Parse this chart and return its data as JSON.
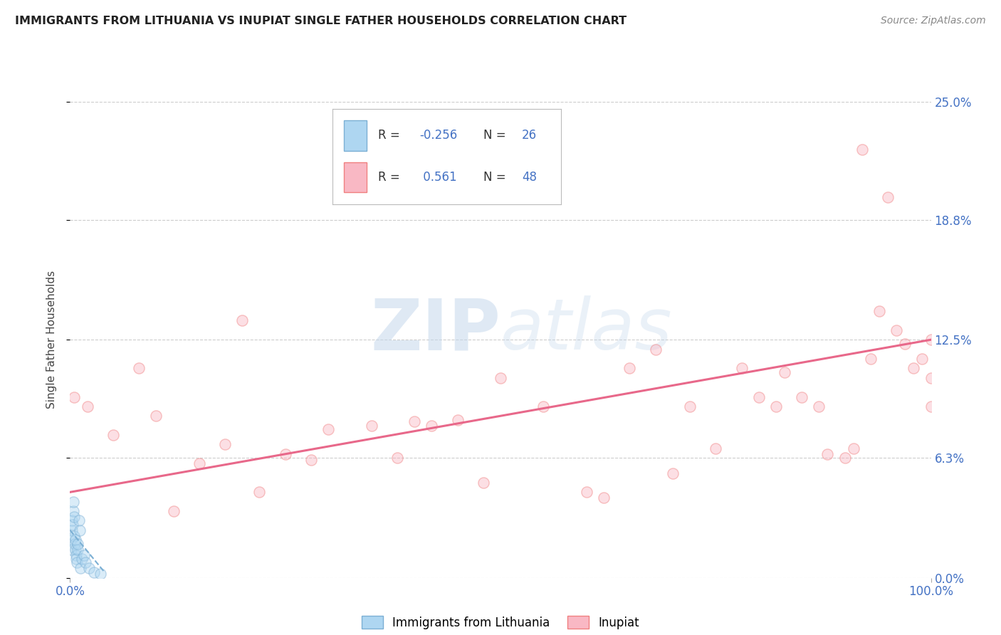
{
  "title": "IMMIGRANTS FROM LITHUANIA VS INUPIAT SINGLE FATHER HOUSEHOLDS CORRELATION CHART",
  "source": "Source: ZipAtlas.com",
  "ylabel": "Single Father Households",
  "ytick_labels": [
    "0.0%",
    "6.3%",
    "12.5%",
    "18.8%",
    "25.0%"
  ],
  "ytick_values": [
    0.0,
    6.3,
    12.5,
    18.8,
    25.0
  ],
  "blue_color": "#7BAFD4",
  "pink_color": "#F08080",
  "blue_fill": "#AED6F1",
  "pink_fill": "#F9B8C4",
  "blue_points_x": [
    0.1,
    0.15,
    0.2,
    0.25,
    0.3,
    0.35,
    0.4,
    0.45,
    0.5,
    0.55,
    0.6,
    0.65,
    0.7,
    0.75,
    0.8,
    0.85,
    0.9,
    1.0,
    1.1,
    1.2,
    1.4,
    1.6,
    1.8,
    2.2,
    2.8,
    3.5
  ],
  "blue_points_y": [
    2.0,
    1.5,
    2.5,
    3.0,
    2.8,
    3.5,
    4.0,
    3.2,
    2.2,
    1.8,
    1.5,
    2.0,
    1.2,
    1.0,
    0.8,
    1.5,
    1.8,
    3.0,
    2.5,
    0.5,
    1.0,
    1.2,
    0.8,
    0.5,
    0.3,
    0.2
  ],
  "pink_points_x": [
    0.5,
    2.0,
    5.0,
    8.0,
    10.0,
    12.0,
    15.0,
    18.0,
    20.0,
    22.0,
    25.0,
    28.0,
    30.0,
    35.0,
    38.0,
    40.0,
    42.0,
    45.0,
    48.0,
    50.0,
    55.0,
    60.0,
    62.0,
    65.0,
    68.0,
    70.0,
    72.0,
    75.0,
    78.0,
    80.0,
    82.0,
    83.0,
    85.0,
    87.0,
    88.0,
    90.0,
    91.0,
    92.0,
    93.0,
    94.0,
    95.0,
    96.0,
    97.0,
    98.0,
    99.0,
    100.0,
    100.0,
    100.0
  ],
  "pink_points_y": [
    9.5,
    9.0,
    7.5,
    11.0,
    8.5,
    3.5,
    6.0,
    7.0,
    13.5,
    4.5,
    6.5,
    6.2,
    7.8,
    8.0,
    6.3,
    8.2,
    8.0,
    8.3,
    5.0,
    10.5,
    9.0,
    4.5,
    4.2,
    11.0,
    12.0,
    5.5,
    9.0,
    6.8,
    11.0,
    9.5,
    9.0,
    10.8,
    9.5,
    9.0,
    6.5,
    6.3,
    6.8,
    22.5,
    11.5,
    14.0,
    20.0,
    13.0,
    12.3,
    11.0,
    11.5,
    12.5,
    10.5,
    9.0
  ],
  "pink_line_x": [
    0,
    100.0
  ],
  "pink_line_y": [
    4.5,
    12.5
  ],
  "blue_line_x": [
    0,
    4.0
  ],
  "blue_line_y": [
    2.5,
    0.3
  ],
  "xlim": [
    0,
    100
  ],
  "ylim": [
    0,
    25.0
  ],
  "marker_size": 120,
  "marker_alpha": 0.45,
  "watermark": "ZIPatlas",
  "background_color": "#FFFFFF",
  "grid_color": "#CCCCCC"
}
